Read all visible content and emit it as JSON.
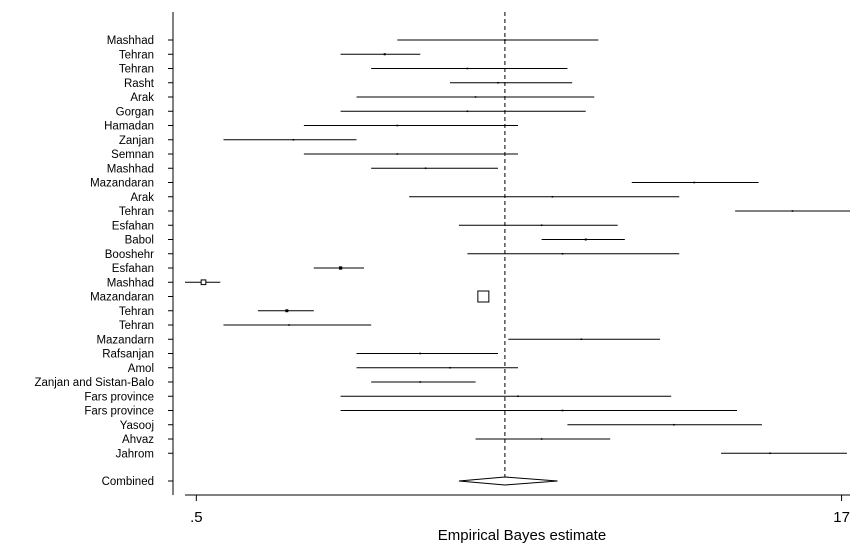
{
  "chart_data": {
    "type": "forest",
    "title": "",
    "xlabel": "Empirical Bayes estimate",
    "ylabel": "",
    "x_scale": "log",
    "xlim": [
      0.47,
      17.8
    ],
    "x_ticks": [
      {
        "value": 0.5,
        "label": ".5"
      },
      {
        "value": 17,
        "label": "17"
      }
    ],
    "reference_line": {
      "value": 2.7,
      "style": "dashed"
    },
    "grid": false,
    "legend": "none",
    "studies": [
      {
        "label": "Mashhad",
        "estimate": 2.7,
        "lower": 1.5,
        "upper": 4.5
      },
      {
        "label": "Tehran",
        "estimate": 1.4,
        "lower": 1.1,
        "upper": 1.7
      },
      {
        "label": "Tehran",
        "estimate": 2.2,
        "lower": 1.3,
        "upper": 3.8
      },
      {
        "label": "Rasht",
        "estimate": 2.6,
        "lower": 2.0,
        "upper": 3.9
      },
      {
        "label": "Arak",
        "estimate": 2.3,
        "lower": 1.2,
        "upper": 4.4
      },
      {
        "label": "Gorgan",
        "estimate": 2.2,
        "lower": 1.1,
        "upper": 4.2
      },
      {
        "label": "Hamadan",
        "estimate": 1.5,
        "lower": 0.9,
        "upper": 2.9
      },
      {
        "label": "Zanjan",
        "estimate": 0.85,
        "lower": 0.58,
        "upper": 1.2
      },
      {
        "label": "Semnan",
        "estimate": 1.5,
        "lower": 0.9,
        "upper": 2.9
      },
      {
        "label": "Mashhad",
        "estimate": 1.75,
        "lower": 1.3,
        "upper": 2.6
      },
      {
        "label": "Mazandaran",
        "estimate": 7.6,
        "lower": 5.4,
        "upper": 10.8
      },
      {
        "label": "Arak",
        "estimate": 3.5,
        "lower": 1.6,
        "upper": 7.0
      },
      {
        "label": "Tehran",
        "estimate": 13.0,
        "lower": 9.5,
        "upper": 18.0
      },
      {
        "label": "Esfahan",
        "estimate": 3.3,
        "lower": 2.1,
        "upper": 5.0
      },
      {
        "label": "Babol",
        "estimate": 4.2,
        "lower": 3.3,
        "upper": 5.2
      },
      {
        "label": "Booshehr",
        "estimate": 3.7,
        "lower": 2.2,
        "upper": 7.0
      },
      {
        "label": "Esfahan",
        "estimate": 1.1,
        "lower": 0.95,
        "upper": 1.25
      },
      {
        "label": "Mashhad",
        "estimate": 0.52,
        "lower": 0.47,
        "upper": 0.57
      },
      {
        "label": "Mazandaran",
        "estimate": 2.4,
        "lower": 2.35,
        "upper": 2.45
      },
      {
        "label": "Tehran",
        "estimate": 0.82,
        "lower": 0.7,
        "upper": 0.95
      },
      {
        "label": "Tehran",
        "estimate": 0.83,
        "lower": 0.58,
        "upper": 1.3
      },
      {
        "label": "Mazandarn",
        "estimate": 4.1,
        "lower": 2.75,
        "upper": 6.3
      },
      {
        "label": "Rafsanjan",
        "estimate": 1.7,
        "lower": 1.2,
        "upper": 2.6
      },
      {
        "label": "Amol",
        "estimate": 2.0,
        "lower": 1.2,
        "upper": 2.9
      },
      {
        "label": "Zanjan and Sistan-Balo",
        "estimate": 1.7,
        "lower": 1.3,
        "upper": 2.3
      },
      {
        "label": "Fars province",
        "estimate": 2.9,
        "lower": 1.1,
        "upper": 6.7
      },
      {
        "label": "Fars province",
        "estimate": 3.7,
        "lower": 1.1,
        "upper": 9.6
      },
      {
        "label": "Yasooj",
        "estimate": 6.8,
        "lower": 3.8,
        "upper": 11.0
      },
      {
        "label": "Ahvaz",
        "estimate": 3.3,
        "lower": 2.3,
        "upper": 4.8
      },
      {
        "label": "Jahrom",
        "estimate": 11.5,
        "lower": 8.8,
        "upper": 17.5
      }
    ],
    "combined": {
      "label": "Combined",
      "estimate": 2.7,
      "lower": 2.1,
      "upper": 3.6
    }
  }
}
